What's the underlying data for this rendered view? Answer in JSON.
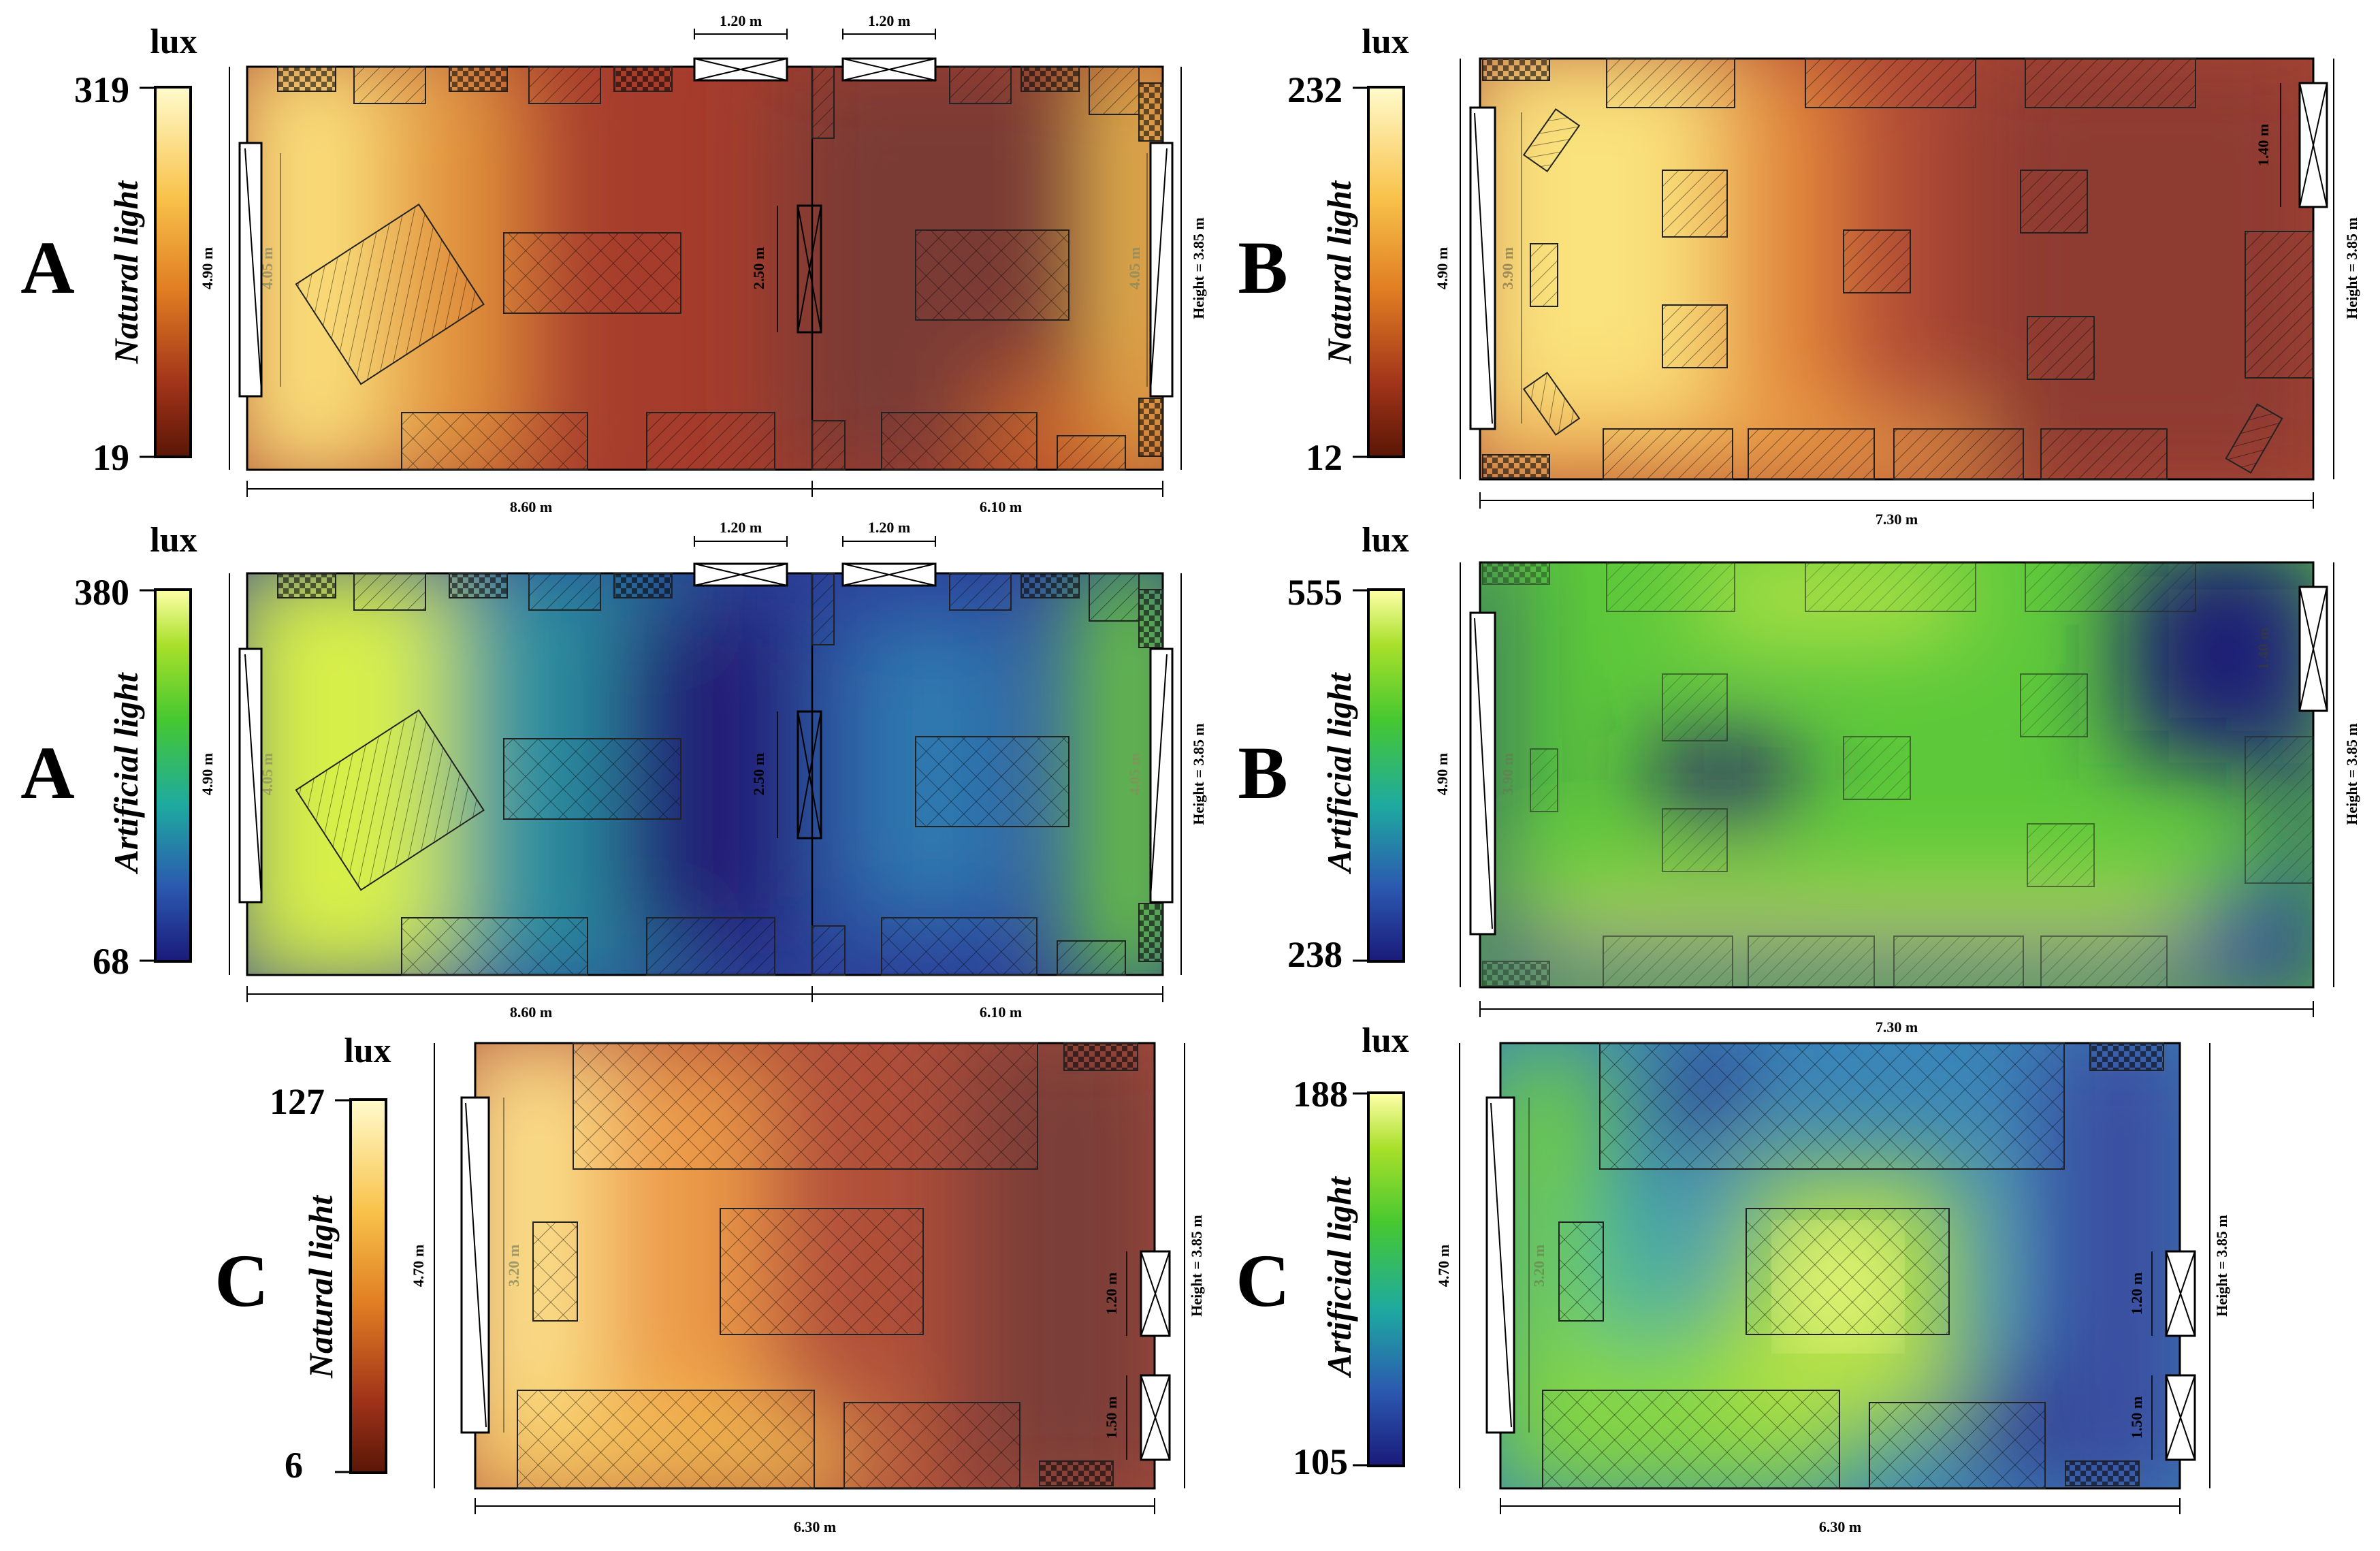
{
  "chart_data": [
    {
      "id": "A-natural",
      "type": "heatmap",
      "row_label": "A",
      "title": "Natural light",
      "unit_label": "lux",
      "colorbar_range": [
        19,
        319
      ],
      "colorbar_ticks": [
        "319",
        "19"
      ],
      "colormap": "afmhot",
      "room": "A",
      "dimension_labels": [
        "1.20 m",
        "1.20 m",
        "4.90 m",
        "4.05 m",
        "2.50 m",
        "4.05 m",
        "Height = 3.85 m",
        "8.60  m",
        "6.10 m"
      ]
    },
    {
      "id": "B-natural",
      "type": "heatmap",
      "row_label": "B",
      "title": "Natural light",
      "unit_label": "lux",
      "colorbar_range": [
        12,
        232
      ],
      "colorbar_ticks": [
        "232",
        "12"
      ],
      "colormap": "afmhot",
      "room": "B",
      "dimension_labels": [
        "4.90 m",
        "3.90 m",
        "1.40 m",
        "Height = 3.85 m",
        "7.30 m"
      ]
    },
    {
      "id": "A-artificial",
      "type": "heatmap",
      "row_label": "A",
      "title": "Artificial light",
      "unit_label": "lux",
      "colorbar_range": [
        68,
        380
      ],
      "colorbar_ticks": [
        "380",
        "68"
      ],
      "colormap": "viridis-like",
      "room": "A",
      "dimension_labels": [
        "1.20 m",
        "1.20 m",
        "4.90 m",
        "4.05 m",
        "2.50 m",
        "4.05 m",
        "Height = 3.85 m",
        "8.60  m",
        "6.10 m"
      ]
    },
    {
      "id": "B-artificial",
      "type": "heatmap",
      "row_label": "B",
      "title": "Artificial light",
      "unit_label": "lux",
      "colorbar_range": [
        238,
        555
      ],
      "colorbar_ticks": [
        "555",
        "238"
      ],
      "colormap": "viridis-like",
      "room": "B",
      "dimension_labels": [
        "4.90 m",
        "3.90 m",
        "1.40 m",
        "Height = 3.85 m",
        "7.30 m"
      ]
    },
    {
      "id": "C-natural",
      "type": "heatmap",
      "row_label": "C",
      "title": "Natural light",
      "unit_label": "lux",
      "colorbar_range": [
        6,
        127
      ],
      "colorbar_ticks": [
        "127",
        "6"
      ],
      "colormap": "afmhot",
      "room": "C",
      "dimension_labels": [
        "4.70 m",
        "3.20 m",
        "1.20 m",
        "1.50 m",
        "Height = 3.85 m",
        "6.30 m"
      ]
    },
    {
      "id": "C-artificial",
      "type": "heatmap",
      "row_label": "C",
      "title": "Artificial light",
      "unit_label": "lux",
      "colorbar_range": [
        105,
        188
      ],
      "colorbar_ticks": [
        "188",
        "105"
      ],
      "colormap": "viridis-like",
      "room": "C",
      "dimension_labels": [
        "4.70 m",
        "3.20 m",
        "1.20 m",
        "1.50 m",
        "Height = 3.85 m",
        "6.30 m"
      ]
    }
  ],
  "colors": {
    "natural": [
      "#5a1606",
      "#9c2f16",
      "#d9691c",
      "#f4b33c",
      "#fbe98a",
      "#fffcd0"
    ],
    "artificial": [
      "#1a1a7a",
      "#2b4ea8",
      "#20a0a0",
      "#48c830",
      "#9ade20",
      "#ffff9a"
    ]
  }
}
